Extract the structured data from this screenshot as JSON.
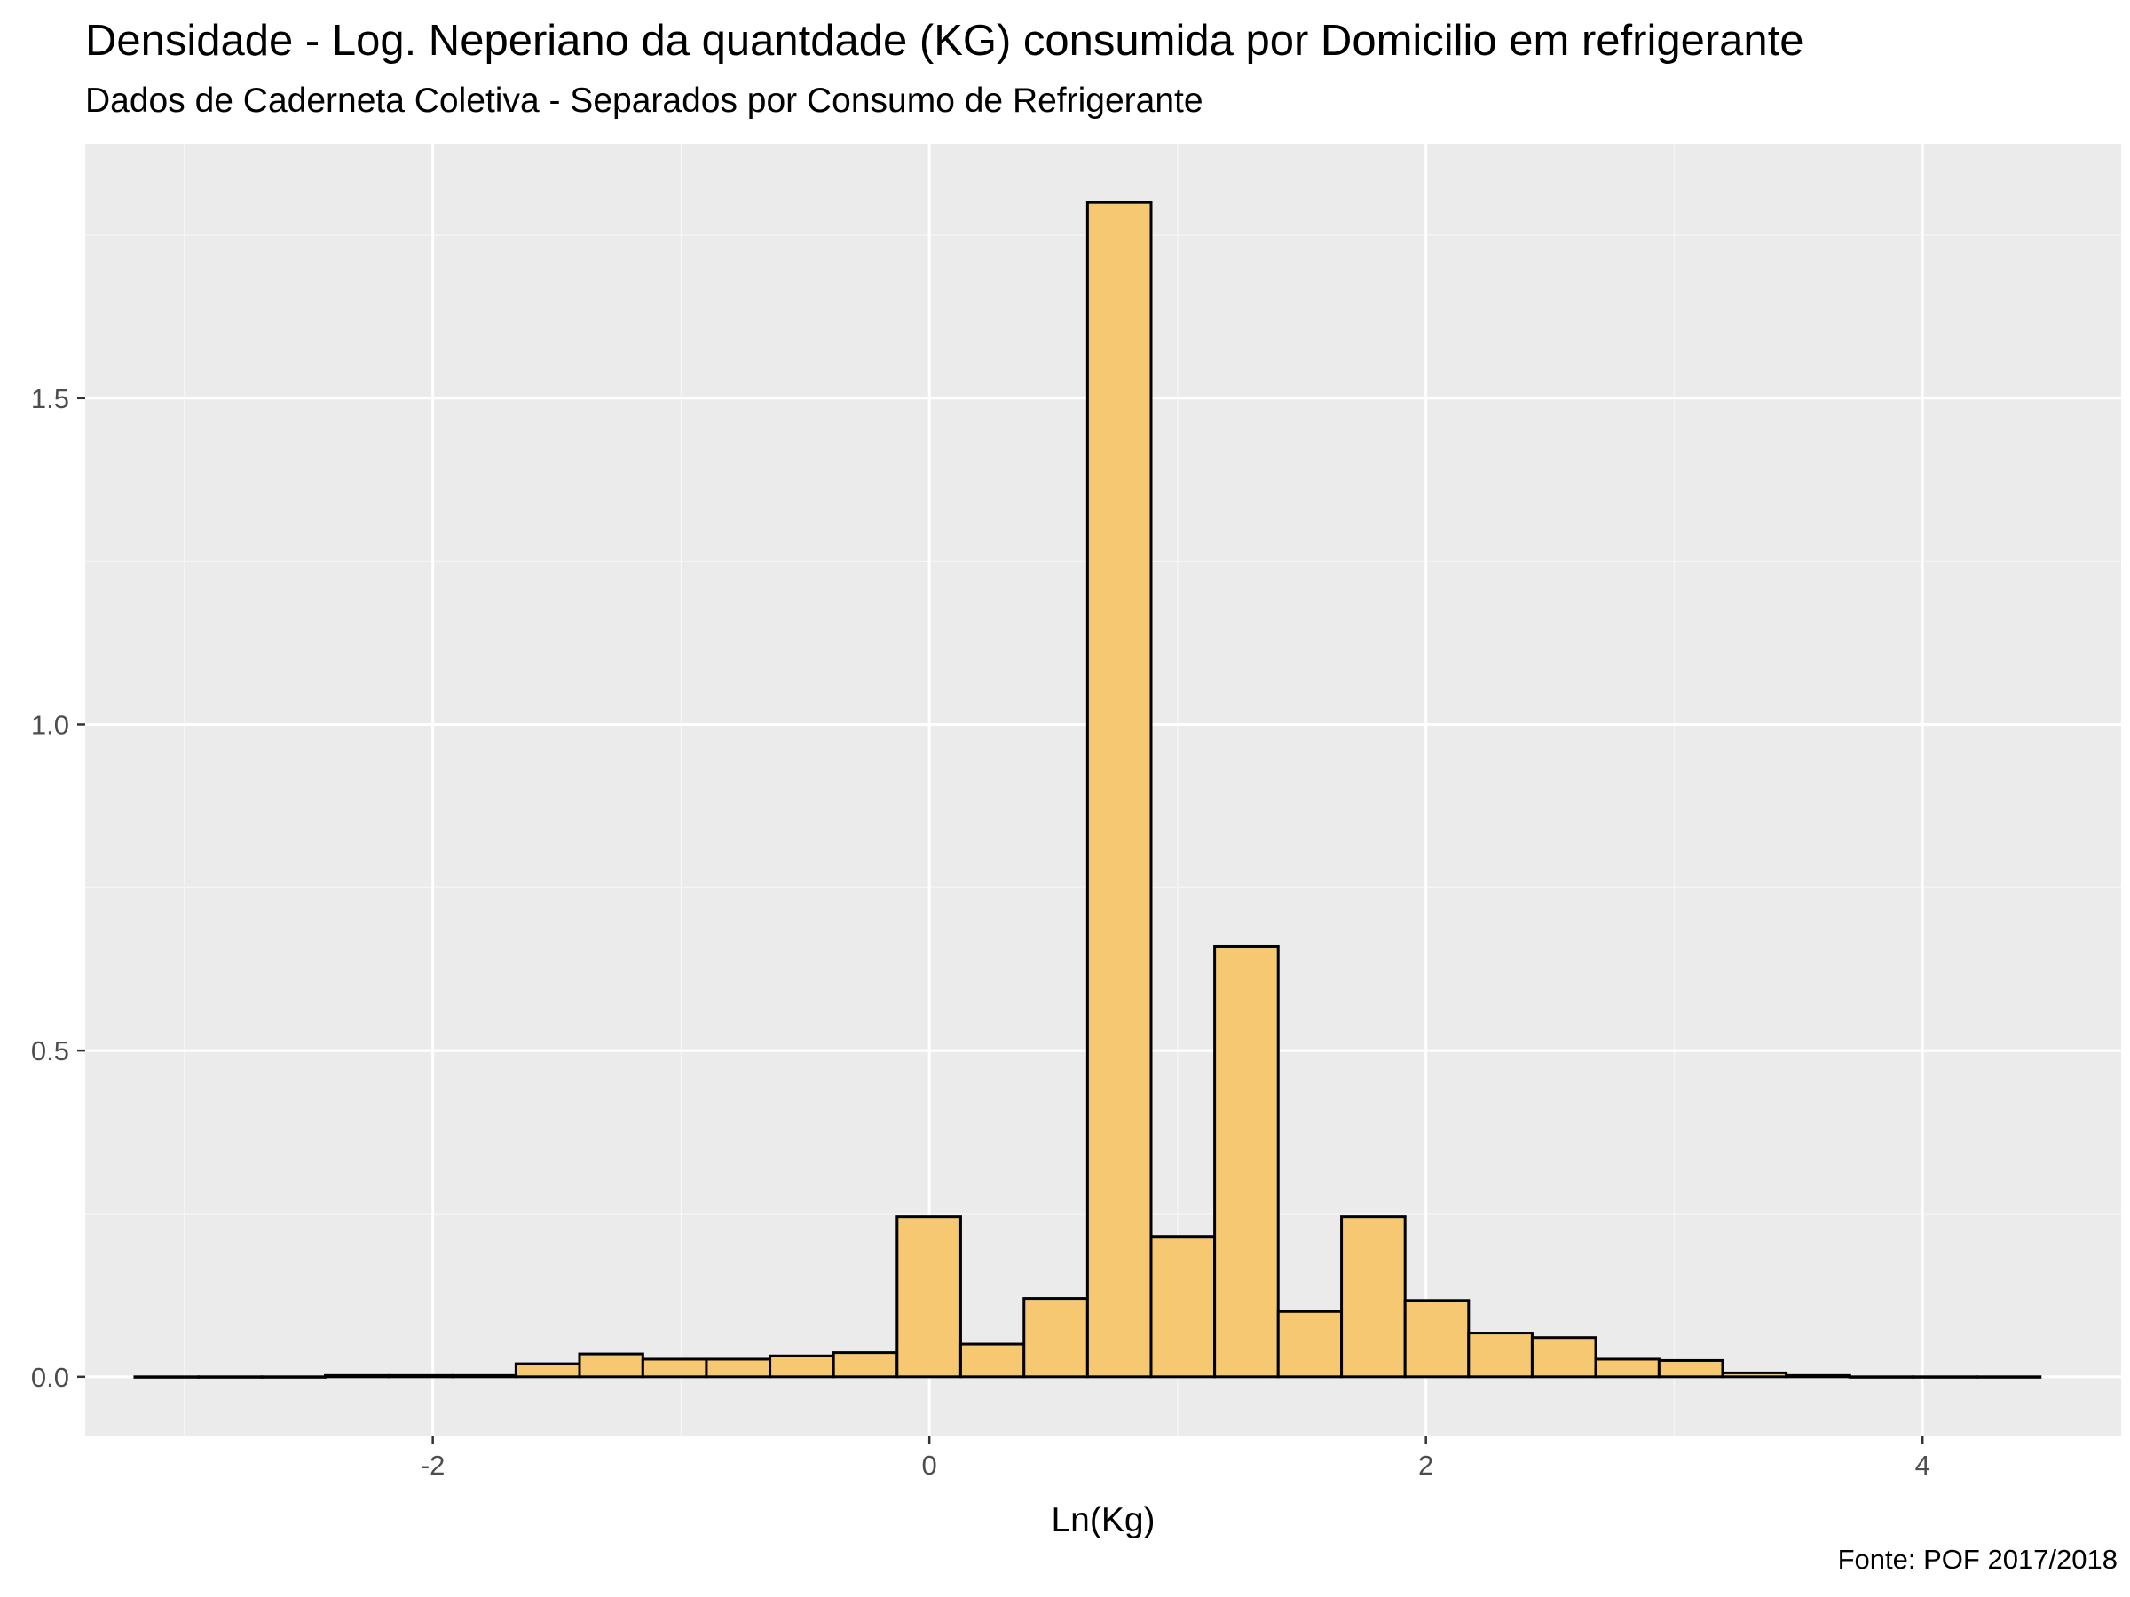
{
  "chart_data": {
    "type": "bar",
    "title": "Densidade - Log. Neperiano da quantdade (KG) consumida por Domicilio em refrigerante",
    "subtitle": "Dados de Caderneta Coletiva - Separados por Consumo de Refrigerante",
    "caption": "Fonte: POF 2017/2018",
    "xlabel": "Ln(Kg)",
    "ylabel": "",
    "xlim": [
      -3.4,
      4.8
    ],
    "ylim": [
      -0.09,
      1.89
    ],
    "x_ticks": [
      {
        "value": -2,
        "label": "-2"
      },
      {
        "value": 0,
        "label": "0"
      },
      {
        "value": 2,
        "label": "2"
      },
      {
        "value": 4,
        "label": "4"
      }
    ],
    "y_ticks": [
      {
        "value": 0.0,
        "label": "0.0"
      },
      {
        "value": 0.5,
        "label": "0.5"
      },
      {
        "value": 1.0,
        "label": "1.0"
      },
      {
        "value": 1.5,
        "label": "1.5"
      }
    ],
    "bin_width": 0.2558,
    "bins": [
      {
        "x0": -3.2,
        "x1": -2.944,
        "value": 0.0
      },
      {
        "x0": -2.944,
        "x1": -2.688,
        "value": 0.0
      },
      {
        "x0": -2.688,
        "x1": -2.433,
        "value": 0.0
      },
      {
        "x0": -2.433,
        "x1": -2.177,
        "value": 0.002
      },
      {
        "x0": -2.177,
        "x1": -1.921,
        "value": 0.002
      },
      {
        "x0": -1.921,
        "x1": -1.665,
        "value": 0.002
      },
      {
        "x0": -1.665,
        "x1": -1.409,
        "value": 0.02
      },
      {
        "x0": -1.409,
        "x1": -1.154,
        "value": 0.035
      },
      {
        "x0": -1.154,
        "x1": -0.898,
        "value": 0.027
      },
      {
        "x0": -0.898,
        "x1": -0.642,
        "value": 0.027
      },
      {
        "x0": -0.642,
        "x1": -0.386,
        "value": 0.032
      },
      {
        "x0": -0.386,
        "x1": -0.13,
        "value": 0.037
      },
      {
        "x0": -0.13,
        "x1": 0.126,
        "value": 0.245
      },
      {
        "x0": 0.126,
        "x1": 0.381,
        "value": 0.05
      },
      {
        "x0": 0.381,
        "x1": 0.637,
        "value": 0.12
      },
      {
        "x0": 0.637,
        "x1": 0.893,
        "value": 1.8
      },
      {
        "x0": 0.893,
        "x1": 1.149,
        "value": 0.215
      },
      {
        "x0": 1.149,
        "x1": 1.405,
        "value": 0.66
      },
      {
        "x0": 1.405,
        "x1": 1.66,
        "value": 0.1
      },
      {
        "x0": 1.66,
        "x1": 1.916,
        "value": 0.245
      },
      {
        "x0": 1.916,
        "x1": 2.172,
        "value": 0.117
      },
      {
        "x0": 2.172,
        "x1": 2.428,
        "value": 0.067
      },
      {
        "x0": 2.428,
        "x1": 2.684,
        "value": 0.06
      },
      {
        "x0": 2.684,
        "x1": 2.939,
        "value": 0.027
      },
      {
        "x0": 2.939,
        "x1": 3.195,
        "value": 0.025
      },
      {
        "x0": 3.195,
        "x1": 3.451,
        "value": 0.006
      },
      {
        "x0": 3.451,
        "x1": 3.707,
        "value": 0.002
      },
      {
        "x0": 3.707,
        "x1": 3.963,
        "value": 0.0
      },
      {
        "x0": 3.963,
        "x1": 4.219,
        "value": 0.0
      },
      {
        "x0": 4.219,
        "x1": 4.474,
        "value": 0.0
      }
    ],
    "colors": {
      "bar_fill": "#f5c871",
      "bar_stroke": "#000000",
      "panel_background": "#ebebeb",
      "grid_major": "#ffffff",
      "grid_minor": "#f5f5f5"
    },
    "grid": true,
    "legend": "none"
  }
}
